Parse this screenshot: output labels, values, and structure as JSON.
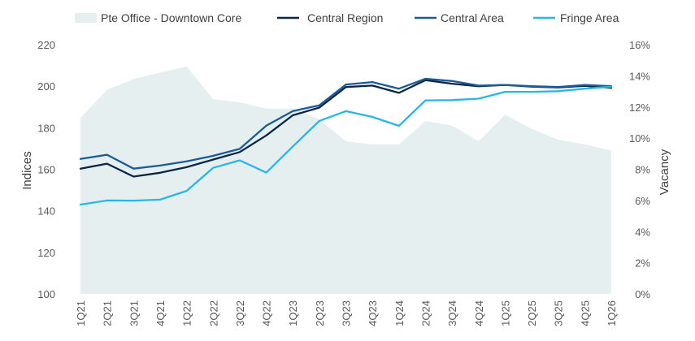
{
  "chart_data": {
    "type": "line",
    "title": "",
    "ylabel": "Indices",
    "y2label": "Vacancy",
    "ylim": [
      100,
      220
    ],
    "y2lim": [
      0,
      16
    ],
    "yticks": [
      "100",
      "120",
      "140",
      "160",
      "180",
      "200",
      "220"
    ],
    "y2ticks": [
      "0%",
      "2%",
      "4%",
      "6%",
      "8%",
      "10%",
      "12%",
      "14%",
      "16%"
    ],
    "categories": [
      "1Q21",
      "2Q21",
      "3Q21",
      "4Q21",
      "1Q22",
      "2Q22",
      "3Q22",
      "4Q22",
      "1Q23",
      "2Q23",
      "3Q23",
      "4Q23",
      "1Q24",
      "2Q24",
      "3Q24",
      "4Q24",
      "1Q25",
      "2Q25",
      "3Q25",
      "4Q25",
      "1Q26"
    ],
    "legend_position": "top",
    "area_series": {
      "name": "Pte Office - Downtown Core",
      "axis": "right",
      "color": "#e6eff0",
      "values": [
        11.3,
        13.1,
        13.8,
        14.2,
        14.6,
        12.5,
        12.3,
        11.9,
        11.9,
        11.2,
        9.8,
        9.6,
        9.6,
        11.1,
        10.8,
        9.8,
        11.5,
        10.6,
        9.9,
        9.6,
        9.2
      ]
    },
    "series": [
      {
        "name": "Central Region",
        "axis": "left",
        "color": "#0b2545",
        "values": [
          160.3,
          162.7,
          156.5,
          158.3,
          161.0,
          164.7,
          168.3,
          176.3,
          186.0,
          189.7,
          199.6,
          200.3,
          196.8,
          202.9,
          201.2,
          200.0,
          200.6,
          199.8,
          199.4,
          200.2,
          199.2
        ]
      },
      {
        "name": "Central Area",
        "axis": "left",
        "color": "#1a5c99",
        "values": [
          165.0,
          167.0,
          160.3,
          161.8,
          163.8,
          166.5,
          169.8,
          181.0,
          188.0,
          190.8,
          200.8,
          202.0,
          198.8,
          203.6,
          202.5,
          200.3,
          200.6,
          200.0,
          199.6,
          200.6,
          200.0
        ]
      },
      {
        "name": "Fringe Area",
        "axis": "left",
        "color": "#29b5e8",
        "values": [
          143.0,
          145.0,
          144.9,
          145.4,
          149.6,
          160.7,
          164.3,
          158.4,
          171.0,
          183.3,
          188.0,
          185.2,
          180.9,
          193.2,
          193.3,
          194.0,
          197.3,
          197.3,
          197.6,
          198.8,
          199.7
        ]
      }
    ]
  }
}
